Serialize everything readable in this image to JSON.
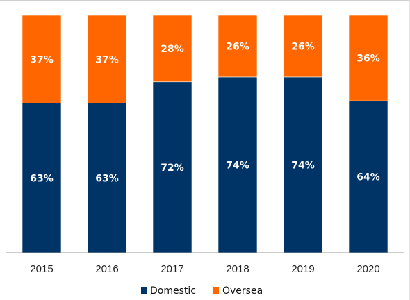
{
  "chart_data": {
    "type": "bar",
    "stacked": true,
    "categories": [
      "2015",
      "2016",
      "2017",
      "2018",
      "2019",
      "2020"
    ],
    "series": [
      {
        "name": "Domestic",
        "values": [
          63,
          63,
          72,
          74,
          74,
          64
        ],
        "labels": [
          "63%",
          "63%",
          "72%",
          "74%",
          "74%",
          "64%"
        ],
        "color": "#003366"
      },
      {
        "name": "Oversea",
        "values": [
          37,
          37,
          28,
          26,
          26,
          36
        ],
        "labels": [
          "37%",
          "37%",
          "28%",
          "26%",
          "26%",
          "36%"
        ],
        "color": "#ff6600"
      }
    ],
    "ylim": [
      0,
      100
    ],
    "grid": false,
    "legend": "bottom"
  }
}
